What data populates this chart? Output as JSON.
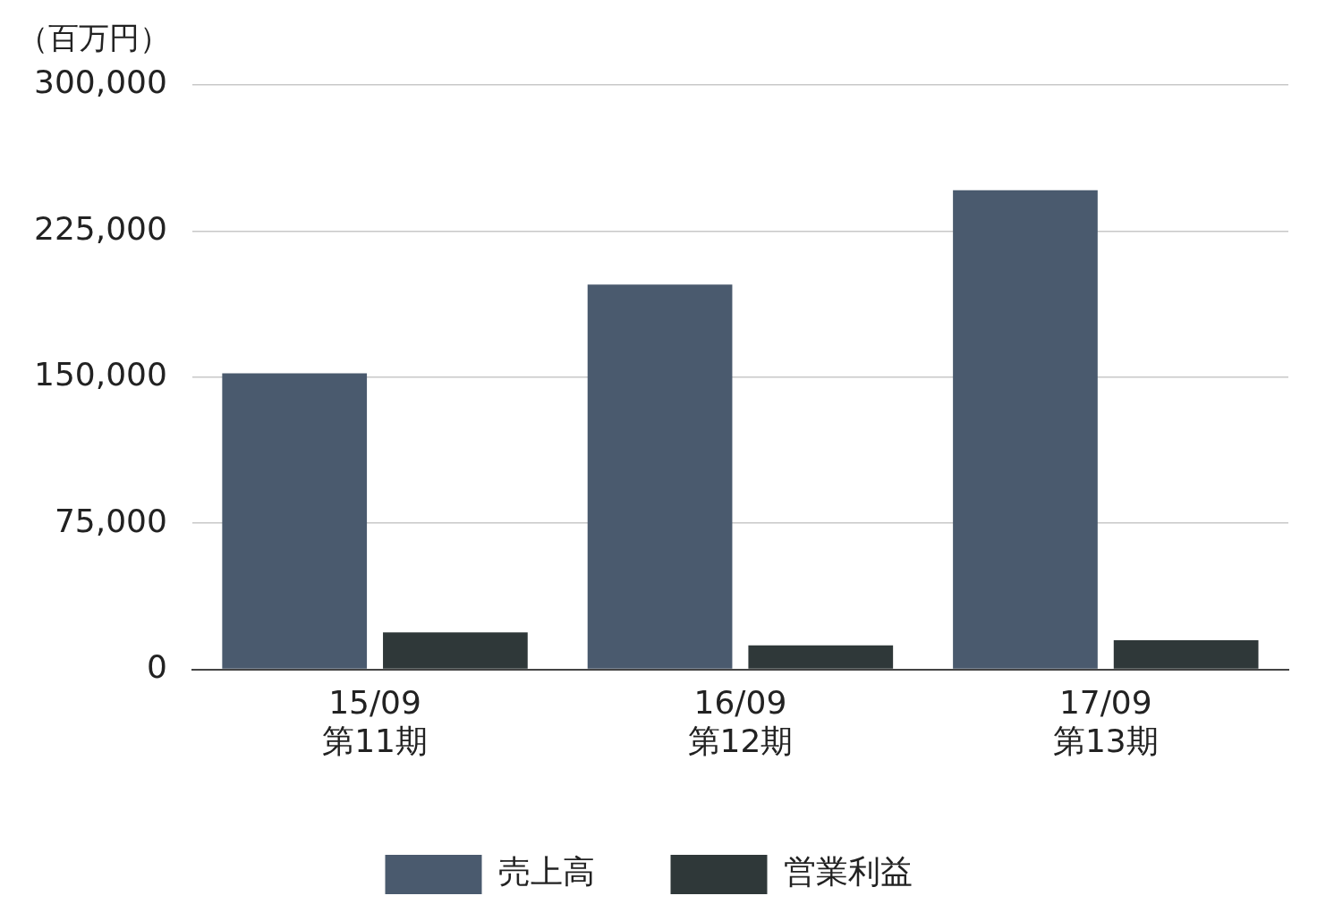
{
  "chart_data": {
    "type": "bar",
    "ylabel": "（百万円）",
    "categories": [
      "15/09\n第11期",
      "16/09\n第12期",
      "17/09\n第13期"
    ],
    "series": [
      {
        "name": "売上高",
        "color": "#4a5a6e",
        "values": [
          152000,
          197500,
          246000
        ]
      },
      {
        "name": "営業利益",
        "color": "#2f3839",
        "values": [
          19000,
          12300,
          15000
        ]
      }
    ],
    "ylim": [
      0,
      300000
    ],
    "yticks": [
      {
        "value": 0,
        "label": "0"
      },
      {
        "value": 75000,
        "label": "75,000"
      },
      {
        "value": 150000,
        "label": "150,000"
      },
      {
        "value": 225000,
        "label": "225,000"
      },
      {
        "value": 300000,
        "label": "300,000"
      }
    ],
    "grid": "y",
    "legend": "bottom"
  }
}
